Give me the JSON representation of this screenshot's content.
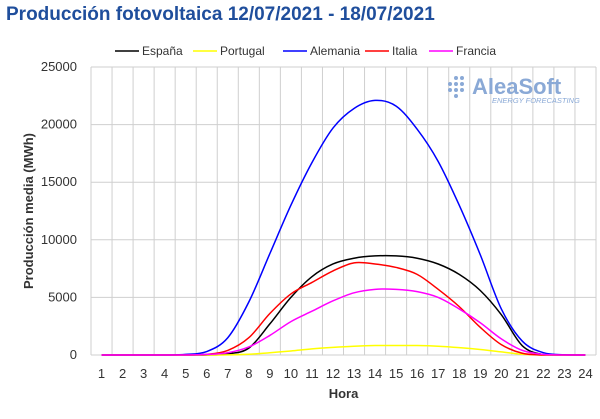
{
  "page": {
    "title": "Producción fotovoltaica 12/07/2021 - 18/07/2021"
  },
  "logo": {
    "name": "AleaSoft",
    "tagline": "ENERGY FORECASTING"
  },
  "chart_data": {
    "type": "line",
    "title": "Producción fotovoltaica 12/07/2021 - 18/07/2021",
    "xlabel": "Hora",
    "ylabel": "Producción media (MWh)",
    "x": [
      1,
      2,
      3,
      4,
      5,
      6,
      7,
      8,
      9,
      10,
      11,
      12,
      13,
      14,
      15,
      16,
      17,
      18,
      19,
      20,
      21,
      22,
      23,
      24
    ],
    "xlim": [
      1,
      24
    ],
    "ylim": [
      0,
      25000
    ],
    "yticks": [
      0,
      5000,
      10000,
      15000,
      20000,
      25000
    ],
    "grid": true,
    "legend": "top",
    "series": [
      {
        "name": "España",
        "color": "#000000",
        "values": [
          0,
          0,
          0,
          0,
          0,
          0,
          100,
          600,
          2700,
          5000,
          6800,
          7900,
          8400,
          8600,
          8600,
          8400,
          7900,
          7000,
          5600,
          3500,
          800,
          30,
          0,
          0
        ]
      },
      {
        "name": "Portugal",
        "color": "#ffff00",
        "values": [
          0,
          0,
          0,
          0,
          0,
          0,
          10,
          60,
          200,
          350,
          530,
          660,
          760,
          820,
          830,
          820,
          760,
          640,
          480,
          270,
          60,
          0,
          0,
          0
        ]
      },
      {
        "name": "Alemania",
        "color": "#0000ff",
        "values": [
          0,
          0,
          0,
          0,
          50,
          300,
          1500,
          4600,
          8800,
          13000,
          16700,
          19700,
          21400,
          22100,
          21600,
          19600,
          16800,
          13000,
          8700,
          4000,
          1200,
          200,
          20,
          0
        ]
      },
      {
        "name": "Italia",
        "color": "#ff0000",
        "values": [
          0,
          0,
          0,
          0,
          0,
          50,
          400,
          1500,
          3600,
          5300,
          6300,
          7300,
          8000,
          7900,
          7600,
          7000,
          5700,
          4200,
          2400,
          900,
          150,
          0,
          0,
          0
        ]
      },
      {
        "name": "Francia",
        "color": "#ff00ff",
        "values": [
          0,
          0,
          0,
          0,
          0,
          50,
          200,
          700,
          1700,
          2900,
          3800,
          4700,
          5400,
          5700,
          5700,
          5500,
          5000,
          4000,
          2800,
          1400,
          400,
          50,
          0,
          0
        ]
      }
    ]
  }
}
